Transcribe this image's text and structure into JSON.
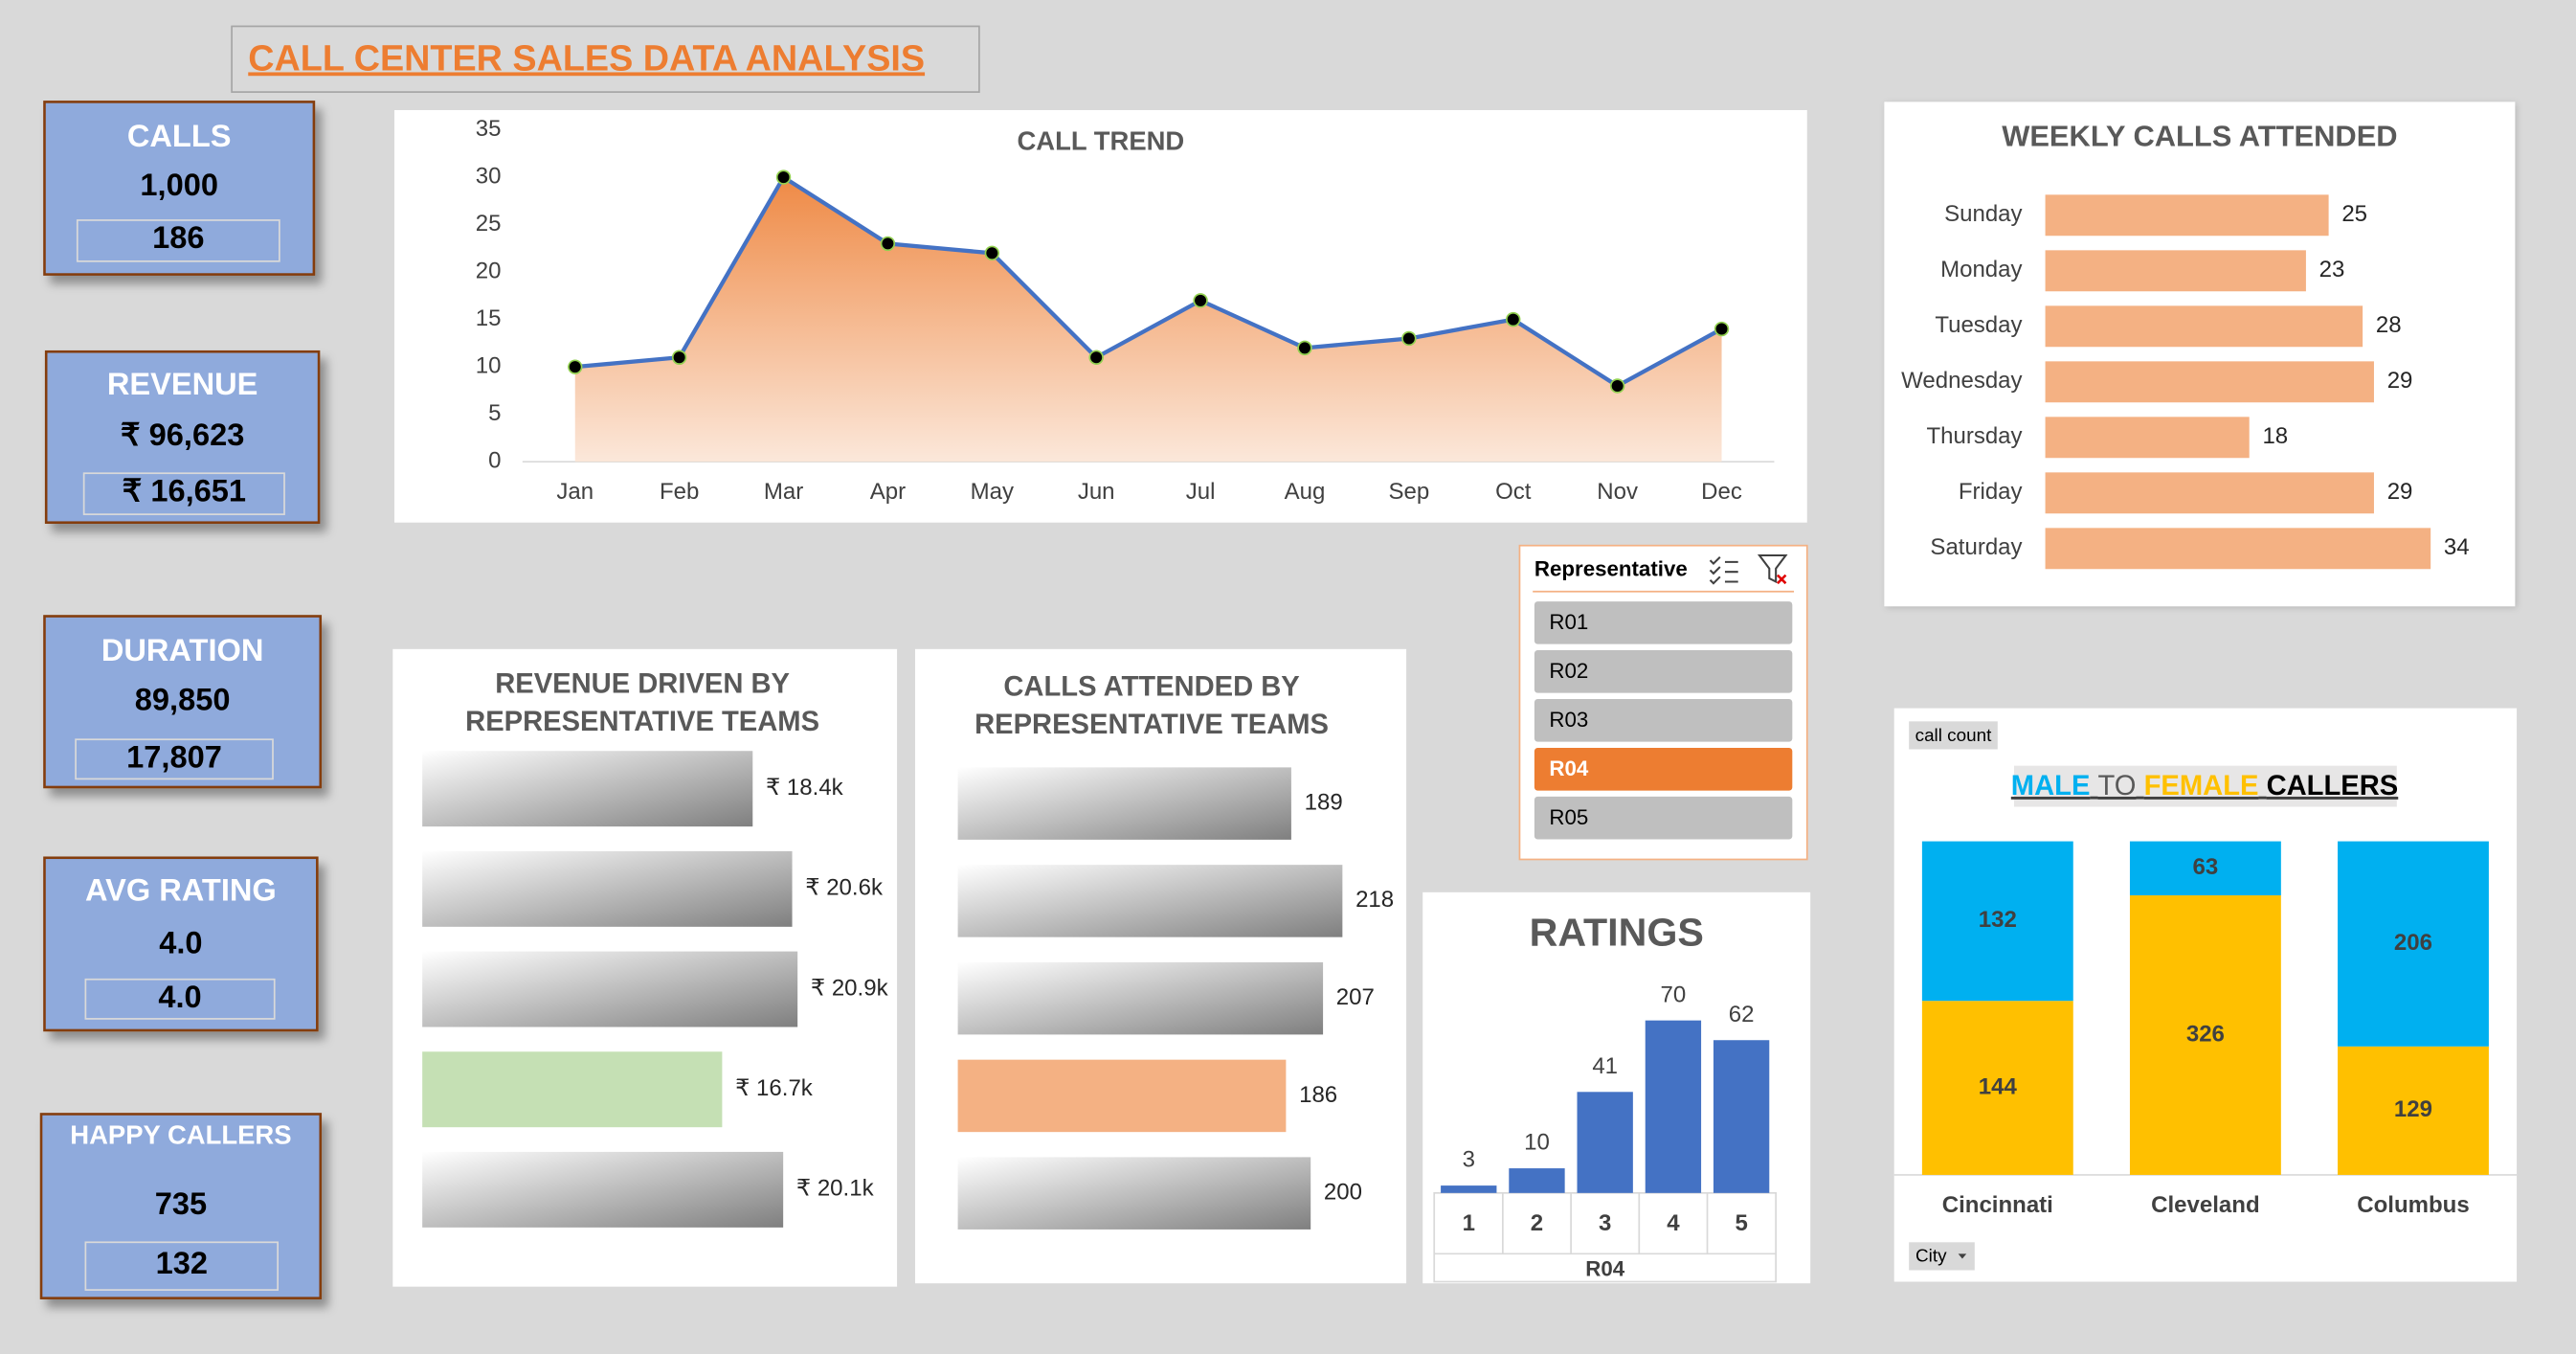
{
  "title": "CALL CENTER SALES DATA ANALYSIS",
  "kpis": [
    {
      "label": "CALLS",
      "value": "1,000",
      "sub": "186"
    },
    {
      "label": "REVENUE",
      "value": "₹ 96,623",
      "sub": "₹ 16,651"
    },
    {
      "label": "DURATION",
      "value": "89,850",
      "sub": "17,807"
    },
    {
      "label": "AVG RATING",
      "value": "4.0",
      "sub": "4.0"
    },
    {
      "label": "HAPPY CALLERS",
      "value": "735",
      "sub": "132"
    }
  ],
  "slicer": {
    "title": "Representative",
    "items": [
      "R01",
      "R02",
      "R03",
      "R04",
      "R05"
    ],
    "selected_index": 3,
    "selected_color": "#ed7d31"
  },
  "chart_data": [
    {
      "type": "line",
      "title": "CALL TREND",
      "categories": [
        "Jan",
        "Feb",
        "Mar",
        "Apr",
        "May",
        "Jun",
        "Jul",
        "Aug",
        "Sep",
        "Oct",
        "Nov",
        "Dec"
      ],
      "values": [
        10,
        11,
        30,
        23,
        22,
        11,
        17,
        12,
        13,
        15,
        8,
        14
      ],
      "color": "#4472c4",
      "area_color": "#ed7d31",
      "ylim": [
        0,
        35
      ],
      "yticks": [
        0,
        5,
        10,
        15,
        20,
        25,
        30,
        35
      ],
      "grid": false
    },
    {
      "type": "hbar",
      "title": "WEEKLY  CALLS ATTENDED",
      "categories": [
        "Sunday",
        "Monday",
        "Tuesday",
        "Wednesday",
        "Thursday",
        "Friday",
        "Saturday"
      ],
      "values": [
        25,
        23,
        28,
        29,
        18,
        29,
        34
      ],
      "color": "#f4b183"
    },
    {
      "type": "hbar",
      "title": [
        "REVENUE DRIVEN  BY",
        "REPRESENTATIVE TEAMS"
      ],
      "categories": [
        null,
        null,
        null,
        null,
        null
      ],
      "values": [
        18400,
        20600,
        20900,
        16700,
        20100
      ],
      "value_labels": [
        "₹ 18.4k",
        "₹ 20.6k",
        "₹ 20.9k",
        "₹ 16.7k",
        "₹ 20.1k"
      ],
      "color": "#7f7f7f",
      "highlight_index": 3,
      "highlight_color": "#c5e0b4"
    },
    {
      "type": "hbar",
      "title": [
        "CALLS ATTENDED BY",
        "REPRESENTATIVE TEAMS"
      ],
      "categories": [
        null,
        null,
        null,
        null,
        null
      ],
      "values": [
        189,
        218,
        207,
        186,
        200
      ],
      "color": "#7f7f7f",
      "highlight_index": 3,
      "highlight_color": "#f4b183"
    },
    {
      "type": "bar",
      "title": "RATINGS",
      "categories": [
        "1",
        "2",
        "3",
        "4",
        "5"
      ],
      "values": [
        3,
        10,
        41,
        70,
        62
      ],
      "xlabel": "R04",
      "color": "#4472c4"
    },
    {
      "type": "stacked_bar",
      "stacked": "percent",
      "button": "call count",
      "filter": "City",
      "title_words": [
        {
          "text": "MALE",
          "color": "#00b0f0"
        },
        {
          "text": "TO",
          "color": "#595959"
        },
        {
          "text": "FEMALE",
          "color": "#ffc000"
        },
        {
          "text": "CALLERS",
          "color": "#000000"
        }
      ],
      "categories": [
        "Cincinnati",
        "Cleveland",
        "Columbus"
      ],
      "series": [
        {
          "color": "#00b0f0",
          "values": [
            132,
            63,
            206
          ]
        },
        {
          "color": "#ffc000",
          "values": [
            144,
            326,
            129
          ]
        }
      ]
    }
  ]
}
